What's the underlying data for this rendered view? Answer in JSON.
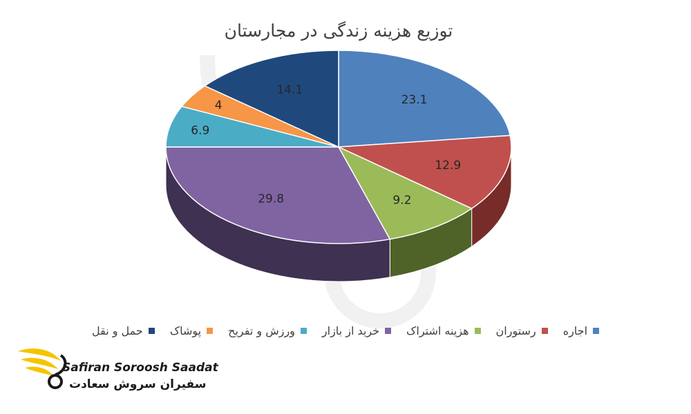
{
  "chart_data": {
    "type": "pie",
    "title": "توزیع هزینه زندگی در مجارستان",
    "categories": [
      "اجاره",
      "رستوران",
      "هزینه اشتراک",
      "خرید از بازار",
      "ورزش و تفریح",
      "پوشاک",
      "حمل و نقل"
    ],
    "values": [
      23.1,
      12.9,
      9.2,
      29.8,
      6.9,
      4,
      14.1
    ],
    "data_labels": [
      "23.1",
      "12.9",
      "9.2",
      "29.8",
      "6.9",
      "4",
      "14.1"
    ],
    "colors": [
      "#4f81bd",
      "#c0504d",
      "#9bbb59",
      "#8064a2",
      "#4bacc6",
      "#f79646",
      "#1f497d"
    ],
    "side_colors": [
      "#2c4d75",
      "#772c2a",
      "#4f6228",
      "#3f3151",
      "#215968",
      "#984807",
      "#10253f"
    ],
    "legend_position": "bottom",
    "three_d": true
  },
  "logo": {
    "name_en": "Safiran Soroosh Saadat",
    "name_fa": "سفیران سروش سعادت",
    "color": "#f5c400",
    "icon": "bird-wings-icon"
  }
}
